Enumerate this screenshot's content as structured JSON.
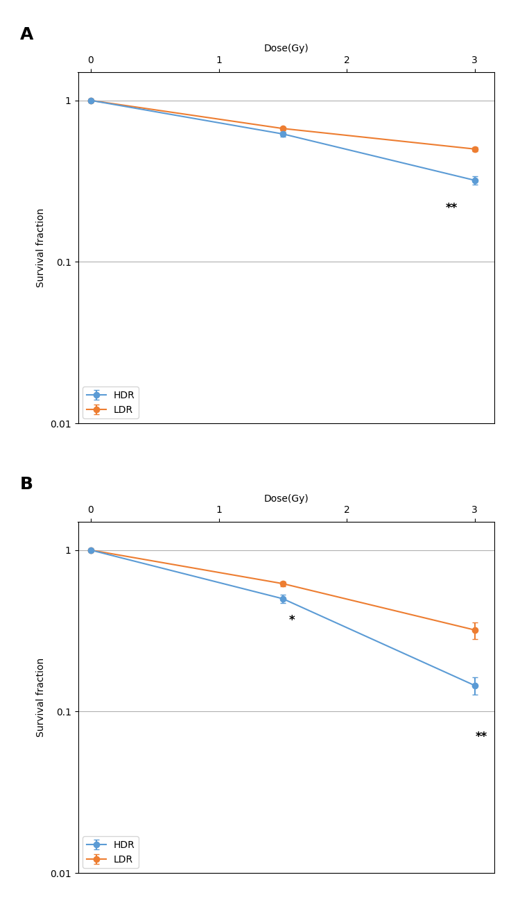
{
  "chart_data": [
    {
      "type": "line",
      "title": "A",
      "x_label": "Dose(Gy)",
      "y_label": "Survival fraction",
      "x": [
        0,
        1.5,
        3
      ],
      "series": [
        {
          "name": "HDR",
          "color": "#5B9BD5",
          "marker": "o",
          "values": [
            1.0,
            0.62,
            0.32
          ],
          "errors": [
            0.0,
            0.022,
            0.018
          ]
        },
        {
          "name": "LDR",
          "color": "#ED7D31",
          "marker": "o",
          "values": [
            1.0,
            0.67,
            0.5
          ],
          "errors": [
            0.0,
            0.018,
            0.015
          ]
        }
      ],
      "annotations": [
        {
          "text": "**",
          "x": 2.82,
          "y": 0.235
        }
      ],
      "xlim": [
        -0.1,
        3.15
      ],
      "xticks": [
        0,
        1,
        2,
        3
      ],
      "ylim": [
        0.01,
        1.5
      ],
      "yticks": [
        0.01,
        0.1,
        1
      ],
      "log": "y",
      "grid": "y",
      "legend": "lower left"
    },
    {
      "type": "line",
      "title": "B",
      "x_label": "Dose(Gy)",
      "y_label": "Survival fraction",
      "x": [
        0,
        1.5,
        3
      ],
      "series": [
        {
          "name": "HDR",
          "color": "#5B9BD5",
          "marker": "o",
          "values": [
            1.0,
            0.5,
            0.145
          ],
          "errors": [
            0.0,
            0.028,
            0.018
          ]
        },
        {
          "name": "LDR",
          "color": "#ED7D31",
          "marker": "o",
          "values": [
            1.0,
            0.62,
            0.32
          ],
          "errors": [
            0.0,
            0.022,
            0.038
          ]
        }
      ],
      "annotations": [
        {
          "text": "*",
          "x": 1.57,
          "y": 0.4
        },
        {
          "text": "**",
          "x": 3.05,
          "y": 0.076
        }
      ],
      "xlim": [
        -0.1,
        3.15
      ],
      "xticks": [
        0,
        1,
        2,
        3
      ],
      "ylim": [
        0.01,
        1.5
      ],
      "yticks": [
        0.01,
        0.1,
        1
      ],
      "log": "y",
      "grid": "y",
      "legend": "lower left"
    }
  ]
}
